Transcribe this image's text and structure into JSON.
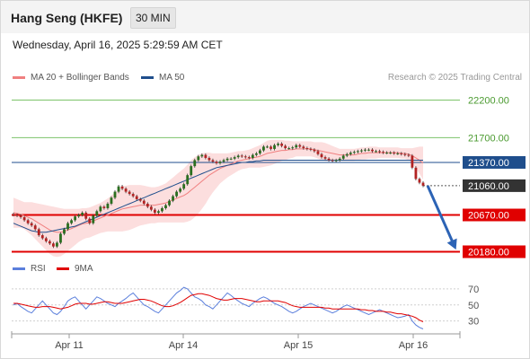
{
  "header": {
    "instrument": "Hang Seng (HKFE)",
    "timeframe": "30 MIN",
    "datetime": "Wednesday, April 16, 2025 5:29:59 AM CET"
  },
  "legend": {
    "items": [
      {
        "label": "MA 20 + Bollinger Bands",
        "color": "#f08080"
      },
      {
        "label": "MA 50",
        "color": "#1f4e8c"
      }
    ],
    "credit": "Research © 2025 Trading Central"
  },
  "rsi_legend": {
    "items": [
      {
        "label": "RSI",
        "color": "#5b7fdc"
      },
      {
        "label": "9MA",
        "color": "#e00000"
      }
    ]
  },
  "colors": {
    "resistance": "#7cc36a",
    "support": "#e00000",
    "pivot": "#1f4e8c",
    "last": "#333333",
    "candle_up": "#2a6e1f",
    "candle_down": "#b22222",
    "forecast_arrow": "#2c63b5",
    "bollinger_fill": "#fbd8d8"
  },
  "chart_data": [
    {
      "type": "candlestick",
      "title": "Hang Seng (HKFE) 30 MIN",
      "x_tick_labels": [
        "Apr 11",
        "Apr 14",
        "Apr 15",
        "Apr 16"
      ],
      "ylim": [
        20150,
        22350
      ],
      "levels": [
        {
          "label": "22200.00",
          "value": 22200,
          "kind": "resistance"
        },
        {
          "label": "21700.00",
          "value": 21700,
          "kind": "resistance"
        },
        {
          "label": "21370.00",
          "value": 21370,
          "kind": "pivot"
        },
        {
          "label": "21060.00",
          "value": 21060,
          "kind": "last"
        },
        {
          "label": "20670.00",
          "value": 20670,
          "kind": "support"
        },
        {
          "label": "20180.00",
          "value": 20180,
          "kind": "support"
        }
      ],
      "forecast": {
        "from": 21060,
        "to": 20180,
        "direction": "down"
      },
      "close_series": [
        20670,
        20660,
        20640,
        20600,
        20560,
        20530,
        20480,
        20400,
        20360,
        20320,
        20290,
        20250,
        20300,
        20420,
        20480,
        20560,
        20600,
        20650,
        20670,
        20700,
        20620,
        20560,
        20660,
        20720,
        20780,
        20760,
        20820,
        20900,
        20980,
        21050,
        21020,
        20980,
        20950,
        20920,
        20880,
        20860,
        20820,
        20780,
        20740,
        20700,
        20720,
        20760,
        20800,
        20860,
        20920,
        20980,
        21020,
        21080,
        21200,
        21320,
        21400,
        21450,
        21470,
        21430,
        21400,
        21380,
        21360,
        21380,
        21400,
        21420,
        21420,
        21440,
        21460,
        21450,
        21440,
        21430,
        21470,
        21490,
        21530,
        21580,
        21580,
        21550,
        21600,
        21620,
        21590,
        21560,
        21560,
        21570,
        21600,
        21580,
        21560,
        21550,
        21540,
        21520,
        21480,
        21440,
        21420,
        21400,
        21390,
        21400,
        21420,
        21460,
        21480,
        21500,
        21510,
        21520,
        21530,
        21540,
        21540,
        21520,
        21520,
        21510,
        21500,
        21500,
        21500,
        21490,
        21490,
        21480,
        21470,
        21460,
        21300,
        21150,
        21100,
        21060
      ],
      "ma20": [
        20700,
        20690,
        20680,
        20660,
        20640,
        20620,
        20590,
        20560,
        20530,
        20500,
        20470,
        20450,
        20440,
        20440,
        20450,
        20470,
        20490,
        20510,
        20530,
        20550,
        20560,
        20570,
        20590,
        20610,
        20630,
        20650,
        20670,
        20690,
        20710,
        20730,
        20750,
        20760,
        20770,
        20780,
        20790,
        20800,
        20800,
        20800,
        20800,
        20800,
        20810,
        20820,
        20830,
        20850,
        20870,
        20890,
        20910,
        20930,
        20960,
        21000,
        21040,
        21080,
        21120,
        21160,
        21200,
        21230,
        21260,
        21290,
        21310,
        21330,
        21350,
        21370,
        21390,
        21400,
        21410,
        21420,
        21430,
        21440,
        21450,
        21470,
        21490,
        21500,
        21510,
        21520,
        21530,
        21530,
        21540,
        21540,
        21550,
        21550,
        21550,
        21550,
        21550,
        21540,
        21530,
        21520,
        21510,
        21500,
        21490,
        21480,
        21470,
        21470,
        21470,
        21470,
        21470,
        21480,
        21490,
        21490,
        21500,
        21500,
        21500,
        21500,
        21500,
        21500,
        21500,
        21500,
        21500,
        21490,
        21490,
        21480,
        21460,
        21430,
        21400,
        21360
      ],
      "bb_width": [
        200,
        190,
        180,
        180,
        200,
        220,
        240,
        260,
        280,
        300,
        320,
        330,
        330,
        320,
        300,
        280,
        260,
        240,
        220,
        210,
        200,
        200,
        200,
        200,
        200,
        210,
        220,
        240,
        260,
        280,
        300,
        300,
        300,
        290,
        280,
        270,
        260,
        250,
        240,
        240,
        240,
        250,
        260,
        280,
        300,
        320,
        340,
        360,
        380,
        400,
        400,
        390,
        370,
        340,
        300,
        260,
        230,
        200,
        180,
        160,
        150,
        140,
        130,
        120,
        120,
        120,
        130,
        140,
        150,
        160,
        170,
        170,
        160,
        150,
        140,
        130,
        120,
        110,
        100,
        100,
        100,
        100,
        100,
        100,
        110,
        120,
        120,
        110,
        100,
        90,
        80,
        80,
        80,
        80,
        80,
        80,
        80,
        80,
        80,
        80,
        80,
        70,
        70,
        70,
        70,
        70,
        70,
        70,
        70,
        80,
        100,
        140,
        180,
        220
      ],
      "ma50": [
        20560,
        20540,
        20520,
        20500,
        20480,
        20460,
        20450,
        20440,
        20440,
        20440,
        20450,
        20460,
        20470,
        20480,
        20490,
        20500,
        20510,
        20520,
        20540,
        20560,
        20580,
        20600,
        20620,
        20640,
        20660,
        20680,
        20700,
        20720,
        20740,
        20760,
        20780,
        20800,
        20820,
        20840,
        20860,
        20880,
        20900,
        20920,
        20940,
        20960,
        20980,
        21000,
        21020,
        21040,
        21060,
        21080,
        21100,
        21120,
        21140,
        21160,
        21180,
        21200,
        21220,
        21240,
        21260,
        21280,
        21300,
        21310,
        21320,
        21330,
        21340,
        21350,
        21360,
        21370,
        21370,
        21380,
        21380,
        21390,
        21390,
        21400,
        21400,
        21400,
        21400,
        21400,
        21400,
        21400,
        21400,
        21400,
        21400,
        21400,
        21400,
        21400,
        21400,
        21400,
        21400,
        21400,
        21400,
        21400,
        21400,
        21400,
        21400,
        21400,
        21400,
        21400,
        21400,
        21400,
        21400,
        21400,
        21400,
        21400,
        21400,
        21400,
        21400,
        21400,
        21400,
        21400,
        21400,
        21400,
        21400,
        21400,
        21400,
        21400,
        21400,
        21400
      ]
    },
    {
      "type": "line",
      "title": "RSI",
      "ylim": [
        15,
        80
      ],
      "y_tick_labels": [
        "70",
        "50",
        "30"
      ],
      "y_ticks": [
        70,
        50,
        30
      ],
      "series": [
        {
          "name": "RSI",
          "values": [
            50,
            52,
            48,
            45,
            42,
            40,
            45,
            50,
            55,
            50,
            45,
            40,
            38,
            42,
            48,
            55,
            58,
            60,
            55,
            50,
            45,
            50,
            55,
            60,
            58,
            55,
            52,
            50,
            48,
            52,
            55,
            58,
            62,
            65,
            60,
            55,
            50,
            48,
            45,
            42,
            40,
            45,
            50,
            55,
            60,
            65,
            68,
            72,
            70,
            65,
            60,
            58,
            55,
            50,
            48,
            45,
            50,
            55,
            60,
            65,
            62,
            58,
            55,
            52,
            50,
            48,
            52,
            55,
            58,
            60,
            58,
            55,
            52,
            50,
            48,
            45,
            42,
            40,
            42,
            45,
            48,
            50,
            52,
            50,
            48,
            46,
            44,
            42,
            40,
            42,
            45,
            48,
            50,
            48,
            46,
            44,
            42,
            40,
            38,
            40,
            42,
            44,
            42,
            40,
            38,
            36,
            34,
            35,
            36,
            38,
            30,
            25,
            22,
            20
          ]
        },
        {
          "name": "9MA",
          "values": [
            52,
            52,
            51,
            50,
            49,
            48,
            47,
            47,
            48,
            48,
            48,
            47,
            46,
            45,
            46,
            47,
            49,
            51,
            52,
            52,
            52,
            51,
            51,
            52,
            53,
            54,
            54,
            53,
            52,
            52,
            52,
            53,
            54,
            55,
            56,
            57,
            57,
            56,
            55,
            53,
            51,
            49,
            48,
            48,
            49,
            51,
            53,
            56,
            59,
            62,
            63,
            64,
            64,
            63,
            62,
            60,
            58,
            57,
            56,
            56,
            57,
            58,
            58,
            58,
            57,
            56,
            55,
            54,
            54,
            55,
            55,
            55,
            55,
            55,
            54,
            53,
            51,
            49,
            48,
            47,
            47,
            47,
            47,
            47,
            47,
            47,
            46,
            46,
            45,
            45,
            45,
            45,
            45,
            45,
            45,
            45,
            44,
            44,
            43,
            43,
            42,
            42,
            42,
            41,
            41,
            40,
            39,
            39,
            38,
            37,
            36,
            34,
            31,
            29
          ]
        }
      ]
    }
  ]
}
